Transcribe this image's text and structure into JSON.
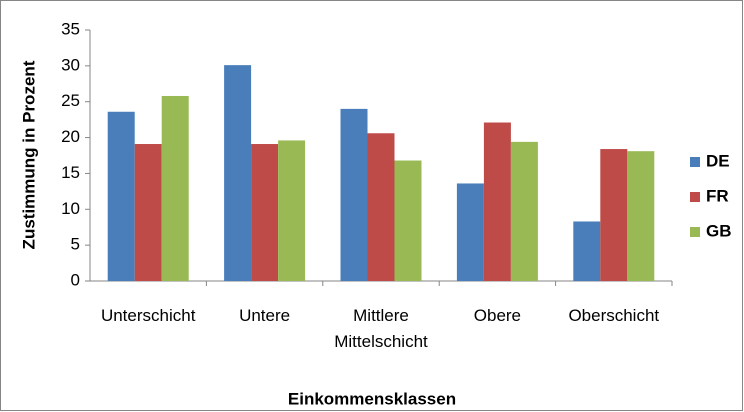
{
  "chart_data": {
    "type": "bar",
    "categories": [
      "Unterschicht",
      "Untere",
      "Mittlere\nMittelschicht",
      "Obere",
      "Oberschicht"
    ],
    "series": [
      {
        "name": "DE",
        "color": "#4a7ebb",
        "values": [
          23.6,
          30.1,
          24.0,
          13.6,
          8.3
        ]
      },
      {
        "name": "FR",
        "color": "#be4b48",
        "values": [
          19.1,
          19.1,
          20.6,
          22.1,
          18.4
        ]
      },
      {
        "name": "GB",
        "color": "#98b954",
        "values": [
          25.8,
          19.6,
          16.8,
          19.4,
          18.1
        ]
      }
    ],
    "ylabel": "Zustimmung in Prozent",
    "xlabel": "Einkommensklassen",
    "ylim": [
      0,
      35
    ],
    "yticks": [
      0,
      5,
      10,
      15,
      20,
      25,
      30,
      35
    ],
    "grid": false,
    "legend": "right"
  }
}
